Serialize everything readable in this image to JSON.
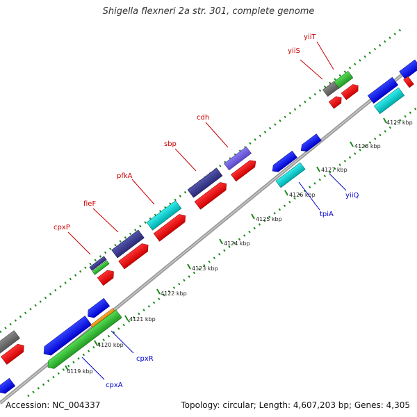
{
  "title": "Shigella flexneri 2a str. 301, complete genome",
  "footer": {
    "accession": "Accession: NC_004337",
    "summary": "Topology: circular; Length: 4,607,203 bp; Genes: 4,305"
  },
  "colors": {
    "label_top": "#cc0000",
    "label_bottom": "#0000cc",
    "dots": "#1a8a1a",
    "backbone": "#999999"
  },
  "gene_labels": {
    "yiiT": "yiiT",
    "yiiS": "yiiS",
    "cdh": "cdh",
    "sbp": "sbp",
    "pfkA": "pfkA",
    "fieF": "fieF",
    "cpxP": "cpxP",
    "yiiQ": "yiiQ",
    "tpiA": "tpiA",
    "cpxR": "cpxR",
    "cpxA": "cpxA"
  },
  "ticks": {
    "t4119": "4119 kbp",
    "t4120": "4120 kbp",
    "t4121": "4121 kbp",
    "t4122": "4122 kbp",
    "t4123": "4123 kbp",
    "t4124": "4124 kbp",
    "t4125": "4125 kbp",
    "t4126": "4126 kbp",
    "t4127": "4127 kbp",
    "t4128": "4128 kbp",
    "t4129": "4129 kbp"
  }
}
